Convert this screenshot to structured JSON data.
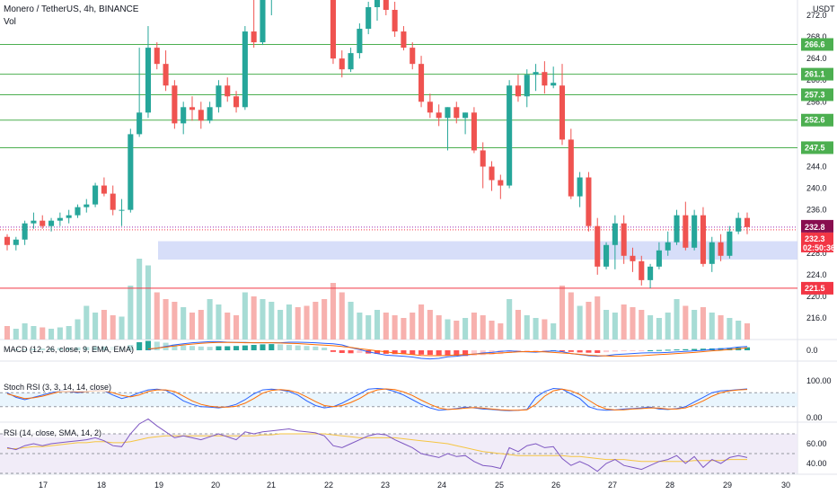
{
  "header": {
    "symbol": "Monero / TetherUS, 4h, BINANCE",
    "volume_label": "Vol",
    "currency": "USDT"
  },
  "indicators": {
    "macd_label": "MACD (12, 26, close, 9, EMA, EMA)",
    "stoch_label": "Stoch RSI (3, 3, 14, 14, close)",
    "rsi_label": "RSI (14, close, SMA, 14, 2)"
  },
  "colors": {
    "up": "#26a69a",
    "down": "#ef5350",
    "vol_up": "#a7dcd5",
    "vol_down": "#f7b1ae",
    "level_line": "#4caf50",
    "support_red": "#f23645",
    "current_line": "#9c27b0",
    "zone_fill": "#c9d3f7",
    "stoch_k": "#2962ff",
    "stoch_d": "#ff6d00",
    "rsi": "#7e57c2",
    "rsi_ma": "#f5c542",
    "macd": "#2962ff",
    "signal": "#ff6d00"
  },
  "chart_data": {
    "type": "candlestick",
    "price_axis_ticks": [
      272.0,
      268.0,
      264.0,
      260.0,
      256.0,
      252.0,
      248.0,
      244.0,
      240.0,
      236.0,
      232.0,
      228.0,
      224.0,
      220.0,
      216.0
    ],
    "x_ticks": [
      "17",
      "18",
      "19",
      "20",
      "21",
      "22",
      "23",
      "24",
      "25",
      "26",
      "27",
      "28",
      "29",
      "30"
    ],
    "levels": [
      {
        "value": 266.6,
        "label": "266.6",
        "color": "#4caf50"
      },
      {
        "value": 261.1,
        "label": "261.1",
        "color": "#4caf50"
      },
      {
        "value": 257.3,
        "label": "257.3",
        "color": "#4caf50"
      },
      {
        "value": 252.6,
        "label": "252.6",
        "color": "#4caf50"
      },
      {
        "value": 247.5,
        "label": "247.5",
        "color": "#4caf50"
      },
      {
        "value": 221.5,
        "label": "221.5",
        "color": "#f23645"
      }
    ],
    "zone": {
      "from": 226.8,
      "to": 230.2
    },
    "current": {
      "last": "232.8",
      "last_value": 232.8,
      "close": "232.3",
      "close_value": 232.3,
      "countdown": "02:50:36"
    },
    "candles": [
      [
        231.0,
        231.5,
        228.5,
        229.5
      ],
      [
        229.5,
        231.0,
        228.5,
        230.5
      ],
      [
        230.5,
        234.0,
        229.5,
        233.5
      ],
      [
        233.5,
        235.5,
        232.5,
        234.0
      ],
      [
        234.0,
        235.0,
        232.5,
        233.0
      ],
      [
        233.0,
        234.5,
        232.0,
        234.0
      ],
      [
        234.0,
        235.5,
        233.0,
        234.5
      ],
      [
        234.5,
        236.0,
        233.5,
        235.0
      ],
      [
        235.0,
        237.0,
        234.5,
        236.5
      ],
      [
        236.5,
        238.0,
        235.5,
        237.0
      ],
      [
        237.0,
        241.0,
        236.5,
        240.5
      ],
      [
        240.5,
        242.0,
        238.5,
        239.0
      ],
      [
        239.0,
        240.5,
        235.0,
        236.0
      ],
      [
        236.0,
        238.0,
        233.0,
        236.0
      ],
      [
        236.0,
        251.0,
        235.5,
        250.0
      ],
      [
        250.0,
        266.0,
        249.5,
        254.0
      ],
      [
        254.0,
        270.0,
        253.0,
        266.0
      ],
      [
        266.0,
        267.0,
        262.0,
        263.0
      ],
      [
        263.0,
        265.5,
        258.0,
        259.0
      ],
      [
        259.0,
        260.0,
        251.0,
        252.0
      ],
      [
        252.0,
        256.0,
        250.0,
        255.0
      ],
      [
        255.0,
        257.0,
        252.5,
        254.5
      ],
      [
        254.5,
        256.0,
        251.0,
        252.5
      ],
      [
        252.5,
        256.0,
        252.0,
        255.0
      ],
      [
        255.0,
        260.0,
        254.0,
        259.0
      ],
      [
        259.0,
        260.5,
        256.0,
        257.0
      ],
      [
        257.0,
        258.0,
        254.0,
        255.0
      ],
      [
        255.0,
        270.0,
        254.5,
        269.0
      ],
      [
        269.0,
        275.0,
        266.0,
        267.0
      ],
      [
        267.0,
        276.0,
        266.5,
        275.0
      ],
      [
        275.0,
        278.0,
        272.0,
        277.0
      ],
      [
        277.0,
        281.0,
        275.0,
        279.0
      ],
      [
        279.0,
        283.0,
        278.0,
        282.0
      ],
      [
        282.0,
        284.0,
        280.0,
        281.0
      ],
      [
        281.0,
        283.5,
        279.5,
        280.5
      ],
      [
        280.5,
        282.0,
        278.0,
        280.0
      ],
      [
        280.0,
        281.5,
        275.0,
        276.0
      ],
      [
        276.0,
        277.5,
        263.0,
        264.0
      ],
      [
        264.0,
        265.5,
        260.5,
        262.0
      ],
      [
        262.0,
        266.0,
        261.5,
        265.0
      ],
      [
        265.0,
        270.5,
        264.0,
        269.5
      ],
      [
        269.5,
        274.5,
        268.5,
        273.5
      ],
      [
        273.5,
        276.0,
        271.0,
        275.0
      ],
      [
        275.0,
        277.0,
        272.0,
        273.0
      ],
      [
        273.0,
        274.5,
        268.0,
        269.0
      ],
      [
        269.0,
        270.0,
        265.5,
        266.0
      ],
      [
        266.0,
        267.0,
        262.0,
        263.0
      ],
      [
        263.0,
        264.5,
        255.0,
        256.0
      ],
      [
        256.0,
        257.5,
        253.0,
        254.0
      ],
      [
        254.0,
        255.5,
        251.5,
        253.0
      ],
      [
        253.0,
        255.0,
        247.0,
        255.0
      ],
      [
        255.0,
        256.0,
        252.0,
        253.0
      ],
      [
        253.0,
        254.0,
        250.0,
        254.0
      ],
      [
        254.0,
        255.0,
        246.5,
        247.0
      ],
      [
        247.0,
        248.5,
        240.0,
        244.0
      ],
      [
        244.0,
        245.0,
        239.5,
        241.5
      ],
      [
        241.5,
        242.5,
        238.0,
        240.5
      ],
      [
        240.5,
        260.0,
        240.0,
        259.0
      ],
      [
        259.0,
        261.0,
        256.0,
        257.0
      ],
      [
        257.0,
        262.0,
        255.0,
        261.0
      ],
      [
        261.0,
        263.0,
        258.0,
        261.5
      ],
      [
        261.5,
        263.5,
        257.5,
        259.0
      ],
      [
        259.0,
        262.5,
        258.5,
        259.5
      ],
      [
        259.0,
        263.0,
        248.0,
        249.0
      ],
      [
        249.0,
        251.0,
        238.0,
        238.5
      ],
      [
        238.5,
        243.0,
        236.5,
        242.0
      ],
      [
        242.0,
        243.0,
        232.0,
        233.0
      ],
      [
        233.0,
        234.5,
        224.0,
        225.5
      ],
      [
        225.5,
        230.0,
        225.0,
        229.5
      ],
      [
        229.5,
        235.0,
        225.0,
        233.5
      ],
      [
        233.5,
        235.0,
        226.0,
        227.5
      ],
      [
        227.5,
        229.0,
        224.5,
        226.5
      ],
      [
        226.5,
        227.5,
        222.0,
        223.0
      ],
      [
        223.0,
        226.0,
        221.5,
        225.5
      ],
      [
        225.5,
        230.0,
        225.0,
        228.5
      ],
      [
        228.5,
        232.0,
        227.5,
        230.0
      ],
      [
        230.0,
        236.0,
        229.5,
        235.0
      ],
      [
        235.0,
        237.5,
        228.5,
        229.0
      ],
      [
        229.0,
        236.0,
        228.5,
        235.0
      ],
      [
        235.0,
        236.5,
        225.5,
        226.0
      ],
      [
        226.0,
        231.0,
        224.5,
        230.0
      ],
      [
        230.0,
        231.5,
        226.5,
        227.5
      ],
      [
        227.5,
        233.0,
        227.0,
        232.0
      ],
      [
        232.0,
        235.5,
        231.5,
        234.5
      ],
      [
        234.5,
        235.5,
        231.5,
        232.8
      ]
    ],
    "volume": [
      0.1,
      0.08,
      0.12,
      0.1,
      0.09,
      0.08,
      0.09,
      0.1,
      0.15,
      0.25,
      0.2,
      0.22,
      0.18,
      0.17,
      0.4,
      0.6,
      0.55,
      0.35,
      0.3,
      0.28,
      0.24,
      0.2,
      0.22,
      0.3,
      0.26,
      0.2,
      0.18,
      0.35,
      0.32,
      0.3,
      0.28,
      0.22,
      0.26,
      0.24,
      0.25,
      0.28,
      0.3,
      0.42,
      0.35,
      0.28,
      0.2,
      0.18,
      0.22,
      0.2,
      0.18,
      0.16,
      0.2,
      0.26,
      0.22,
      0.18,
      0.15,
      0.14,
      0.16,
      0.2,
      0.18,
      0.14,
      0.12,
      0.3,
      0.22,
      0.18,
      0.16,
      0.15,
      0.12,
      0.4,
      0.35,
      0.25,
      0.28,
      0.32,
      0.22,
      0.2,
      0.26,
      0.24,
      0.22,
      0.18,
      0.16,
      0.2,
      0.3,
      0.25,
      0.22,
      0.24,
      0.2,
      0.18,
      0.16,
      0.14,
      0.12
    ],
    "macd_hist": [
      0.4,
      0.4,
      0.5,
      0.6,
      0.7,
      0.8,
      0.9,
      1.0,
      1.1,
      1.2,
      1.3,
      1.4,
      1.3,
      1.2,
      2.0,
      3.0,
      3.5,
      3.2,
      2.8,
      2.2,
      1.8,
      1.6,
      1.4,
      1.3,
      1.5,
      1.5,
      1.6,
      1.8,
      2.0,
      2.2,
      2.3,
      2.2,
      2.0,
      1.8,
      1.6,
      1.4,
      1.0,
      -0.6,
      -1.0,
      -1.1,
      -1.0,
      -1.2,
      -1.3,
      -1.3,
      -1.4,
      -1.4,
      -1.5,
      -1.6,
      -1.7,
      -1.8,
      -1.9,
      -2.0,
      -2.1,
      -2.0,
      -1.8,
      -1.6,
      -1.4,
      -1.0,
      -0.6,
      -0.3,
      -0.2,
      -0.1,
      0.0,
      -0.4,
      -0.6,
      -0.8,
      -0.9,
      -1.0,
      -0.7,
      -0.5,
      -0.3,
      -0.2,
      -0.1,
      0.0,
      0.1,
      0.2,
      0.3,
      0.4,
      0.5,
      0.6,
      0.7,
      0.8,
      0.9,
      1.0,
      1.1
    ],
    "macd_line": [
      null,
      null,
      null,
      null,
      null,
      null,
      null,
      null,
      null,
      null,
      null,
      null,
      null,
      null,
      null,
      null,
      0.3,
      0.8,
      1.4,
      2.0,
      2.4,
      2.8,
      3.0,
      3.2,
      3.2,
      3.0,
      2.9,
      2.9,
      2.8,
      2.8,
      2.8,
      2.8,
      3.0,
      3.0,
      2.9,
      2.8,
      2.6,
      2.4,
      2.0,
      1.0,
      0.3,
      -0.6,
      -1.2,
      -1.8,
      -2.0,
      -2.2,
      -2.5,
      -3.0,
      -3.2,
      -3.0,
      -2.4,
      -2.2,
      -1.8,
      -1.4,
      -1.0,
      -0.8,
      -0.4,
      -0.2,
      -0.4,
      -0.6,
      -0.7,
      -0.4,
      -0.2,
      -0.5,
      -1.2,
      -1.6,
      -2.0,
      -2.2,
      -2.0,
      -1.6,
      -1.4,
      -1.2,
      -1.0,
      -0.9,
      -0.9,
      -0.8,
      -0.6,
      -0.4,
      -0.2,
      0.0,
      0.3,
      0.5,
      0.8,
      1.2,
      1.4
    ],
    "signal_line": [
      null,
      null,
      null,
      null,
      null,
      null,
      null,
      null,
      null,
      null,
      null,
      null,
      null,
      null,
      null,
      null,
      0.5,
      0.8,
      1.2,
      1.6,
      2.0,
      2.3,
      2.6,
      2.8,
      2.9,
      2.9,
      2.9,
      2.8,
      2.8,
      2.8,
      2.8,
      2.7,
      2.6,
      2.5,
      2.3,
      2.1,
      1.9,
      1.7,
      1.4,
      1.1,
      0.6,
      0.2,
      -0.2,
      -0.6,
      -1.0,
      -1.3,
      -1.6,
      -1.9,
      -2.0,
      -2.0,
      -1.9,
      -1.7,
      -1.6,
      -1.4,
      -1.3,
      -1.2,
      -1.0,
      -0.8,
      -0.6,
      -0.5,
      -0.5,
      -0.6,
      -0.8,
      -1.0,
      -1.2,
      -1.5,
      -1.8,
      -2.0,
      -2.1,
      -2.2,
      -2.2,
      -2.1,
      -2.0,
      -1.8,
      -1.6,
      -1.4,
      -1.2,
      -1.0,
      -0.8,
      -0.5,
      -0.2,
      0.0,
      0.3,
      0.6,
      0.9
    ],
    "stoch_axis": [
      "100.00",
      "0.00"
    ],
    "stoch_k": [
      80,
      60,
      50,
      60,
      70,
      80,
      90,
      85,
      80,
      85,
      90,
      88,
      70,
      55,
      65,
      80,
      92,
      95,
      90,
      70,
      45,
      30,
      20,
      18,
      15,
      20,
      30,
      50,
      75,
      92,
      95,
      92,
      85,
      70,
      45,
      25,
      15,
      20,
      35,
      55,
      75,
      95,
      98,
      95,
      85,
      70,
      50,
      30,
      15,
      5,
      8,
      12,
      18,
      15,
      10,
      8,
      5,
      3,
      5,
      8,
      60,
      85,
      98,
      95,
      75,
      55,
      20,
      8,
      5,
      6,
      10,
      12,
      15,
      18,
      10,
      8,
      12,
      20,
      40,
      60,
      80,
      88,
      90,
      93,
      96
    ],
    "stoch_d": [
      75,
      65,
      55,
      58,
      65,
      75,
      85,
      86,
      84,
      85,
      88,
      88,
      80,
      68,
      62,
      70,
      85,
      92,
      92,
      85,
      65,
      45,
      30,
      22,
      18,
      18,
      22,
      35,
      55,
      78,
      90,
      93,
      90,
      80,
      62,
      42,
      25,
      20,
      25,
      38,
      55,
      78,
      92,
      96,
      93,
      83,
      68,
      48,
      30,
      15,
      8,
      10,
      14,
      16,
      14,
      10,
      7,
      5,
      5,
      7,
      30,
      65,
      88,
      95,
      88,
      72,
      48,
      25,
      10,
      6,
      7,
      10,
      12,
      15,
      14,
      10,
      10,
      15,
      28,
      45,
      65,
      80,
      88,
      92,
      94
    ],
    "rsi_axis": [
      "60.00",
      "40.00"
    ],
    "rsi": [
      56,
      54,
      58,
      60,
      58,
      60,
      61,
      62,
      63,
      64,
      66,
      63,
      58,
      57,
      70,
      80,
      85,
      78,
      72,
      66,
      68,
      66,
      64,
      67,
      70,
      67,
      64,
      72,
      70,
      72,
      73,
      74,
      75,
      73,
      72,
      71,
      68,
      58,
      56,
      60,
      64,
      68,
      70,
      69,
      64,
      60,
      56,
      50,
      48,
      46,
      50,
      47,
      48,
      42,
      38,
      37,
      35,
      56,
      52,
      58,
      60,
      56,
      57,
      45,
      38,
      42,
      38,
      32,
      40,
      44,
      38,
      36,
      34,
      38,
      42,
      44,
      48,
      40,
      47,
      36,
      44,
      40,
      46,
      48,
      46
    ],
    "rsi_ma": [
      55,
      55,
      56,
      57,
      57,
      58,
      59,
      60,
      61,
      61,
      62,
      62,
      61,
      61,
      62,
      64,
      66,
      67,
      68,
      68,
      68,
      68,
      68,
      68,
      68,
      68,
      68,
      68,
      68,
      69,
      69,
      70,
      70,
      70,
      70,
      70,
      70,
      69,
      68,
      67,
      66,
      66,
      66,
      66,
      66,
      65,
      64,
      63,
      62,
      61,
      60,
      58,
      56,
      54,
      52,
      51,
      50,
      49,
      48,
      48,
      48,
      48,
      48,
      48,
      47,
      47,
      46,
      45,
      44,
      44,
      44,
      43,
      42,
      42,
      42,
      42,
      42,
      42,
      43,
      43,
      43,
      43,
      44,
      44,
      44
    ]
  }
}
